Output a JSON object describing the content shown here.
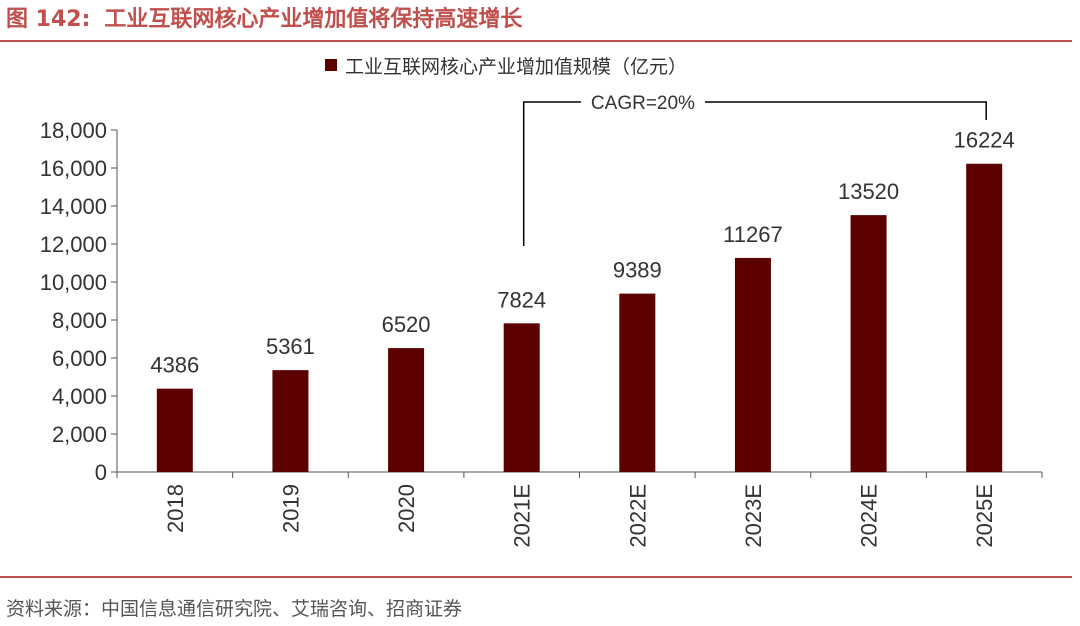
{
  "figure": {
    "number": "图 142:",
    "title": "工业互联网核心产业增加值将保持高速增长",
    "source": "资料来源：中国信息通信研究院、艾瑞咨询、招商证券"
  },
  "colors": {
    "bar": "#5c0000",
    "accent": "#c0504d"
  },
  "chart_data": {
    "type": "bar",
    "categories": [
      "2018",
      "2019",
      "2020",
      "2021E",
      "2022E",
      "2023E",
      "2024E",
      "2025E"
    ],
    "series": [
      {
        "name": "工业互联网核心产业增加值规模（亿元）",
        "values": [
          4386,
          5361,
          6520,
          7824,
          9389,
          11267,
          13520,
          16224
        ]
      }
    ],
    "ylim": [
      0,
      18000
    ],
    "yticks": [
      0,
      2000,
      4000,
      6000,
      8000,
      10000,
      12000,
      14000,
      16000,
      18000
    ],
    "ytick_labels": [
      "0",
      "2,000",
      "4,000",
      "6,000",
      "8,000",
      "10,000",
      "12,000",
      "14,000",
      "16,000",
      "18,000"
    ],
    "legend_position": "top-center",
    "grid": false,
    "annotation": {
      "text": "CAGR=20%",
      "from_category": "2021E",
      "to_category": "2025E"
    }
  }
}
